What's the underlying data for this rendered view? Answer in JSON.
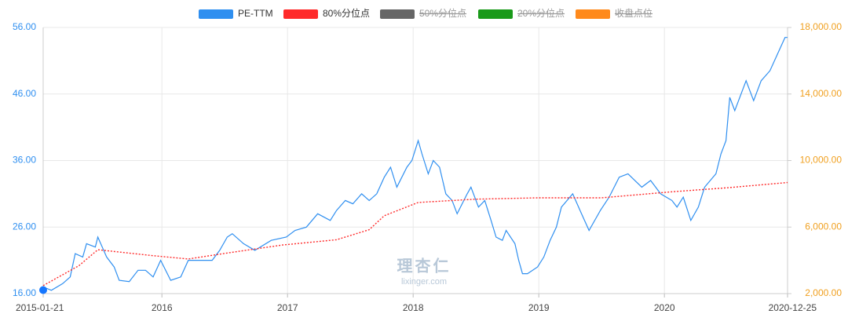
{
  "chart_data": {
    "type": "line",
    "watermark": [
      "理杏仁",
      "lixinger.com"
    ],
    "xlim": [
      2015.055,
      2020.98
    ],
    "xticks": [
      {
        "value": 2015.055,
        "label": "2015-01-21"
      },
      2016,
      2017,
      2018,
      2019,
      2020,
      {
        "value": 2020.98,
        "label": "2020-12-25"
      }
    ],
    "ylim": [
      16,
      56
    ],
    "yticks": [
      {
        "value": 16,
        "label": "16.00"
      },
      {
        "value": 26,
        "label": "26.00"
      },
      {
        "value": 36,
        "label": "36.00"
      },
      {
        "value": 46,
        "label": "46.00"
      },
      {
        "value": 56,
        "label": "56.00"
      }
    ],
    "y2lim": [
      2000,
      18000
    ],
    "y2ticks": [
      {
        "value": 2000,
        "label": "2,000.00"
      },
      {
        "value": 6000,
        "label": "6,000.00"
      },
      {
        "value": 10000,
        "label": "10,000.00"
      },
      {
        "value": 14000,
        "label": "14,000.00"
      },
      {
        "value": 18000,
        "label": "18,000.00"
      }
    ],
    "grid": true,
    "series": [
      {
        "name": "PE-TTM",
        "color": "#2f8ff0",
        "visible": true,
        "dash": false,
        "x": [
          2015.055,
          2015.12,
          2015.21,
          2015.27,
          2015.31,
          2015.37,
          2015.4,
          2015.47,
          2015.49,
          2015.56,
          2015.62,
          2015.66,
          2015.74,
          2015.81,
          2015.87,
          2015.93,
          2015.99,
          2016.07,
          2016.15,
          2016.21,
          2016.31,
          2016.4,
          2016.46,
          2016.52,
          2016.56,
          2016.65,
          2016.74,
          2016.87,
          2016.99,
          2017.06,
          2017.15,
          2017.24,
          2017.34,
          2017.39,
          2017.46,
          2017.52,
          2017.59,
          2017.65,
          2017.71,
          2017.77,
          2017.82,
          2017.87,
          2017.95,
          2017.99,
          2018.04,
          2018.07,
          2018.12,
          2018.16,
          2018.21,
          2018.26,
          2018.31,
          2018.35,
          2018.43,
          2018.46,
          2018.52,
          2018.57,
          2018.62,
          2018.66,
          2018.71,
          2018.74,
          2018.81,
          2018.84,
          2018.87,
          2018.91,
          2018.99,
          2019.04,
          2019.09,
          2019.14,
          2019.18,
          2019.27,
          2019.34,
          2019.4,
          2019.49,
          2019.56,
          2019.64,
          2019.71,
          2019.82,
          2019.89,
          2019.97,
          2020.06,
          2020.1,
          2020.15,
          2020.21,
          2020.27,
          2020.32,
          2020.41,
          2020.45,
          2020.49,
          2020.52,
          2020.56,
          2020.59,
          2020.65,
          2020.71,
          2020.77,
          2020.84,
          2020.9,
          2020.96,
          2020.98
        ],
        "values": [
          17,
          16.5,
          17.5,
          18.5,
          22,
          21.5,
          23.5,
          23,
          24.5,
          21.5,
          20,
          18,
          17.8,
          19.5,
          19.5,
          18.5,
          21,
          18,
          18.5,
          21,
          21,
          21,
          22.5,
          24.5,
          25,
          23.5,
          22.5,
          24,
          24.5,
          25.5,
          26,
          28,
          27,
          28.5,
          30,
          29.5,
          31,
          30,
          31,
          33.5,
          35,
          32,
          35,
          36,
          39,
          37,
          34,
          36,
          35,
          31,
          30,
          28,
          31,
          32,
          29,
          30,
          27,
          24.5,
          24,
          25.5,
          23.5,
          21,
          19,
          19,
          20,
          21.5,
          24,
          26,
          29,
          31,
          28,
          25.5,
          28.5,
          30.5,
          33.5,
          34,
          32,
          33,
          31,
          30,
          29,
          30.5,
          27,
          29,
          32,
          34,
          37,
          39,
          45.5,
          43.5,
          45,
          48,
          45,
          48,
          49.5,
          52,
          54.5,
          54.5
        ]
      },
      {
        "name": "80%分位点",
        "color": "#ff2a2a",
        "visible": true,
        "dash": true,
        "x": [
          2015.055,
          2015.34,
          2015.49,
          2015.93,
          2016.21,
          2016.52,
          2016.96,
          2017.39,
          2017.65,
          2017.77,
          2018.04,
          2018.5,
          2018.99,
          2019.5,
          2020.06,
          2020.5,
          2020.98
        ],
        "values": [
          17.2,
          20.2,
          22.6,
          21.7,
          21.2,
          22.1,
          23.3,
          24.1,
          25.6,
          27.7,
          29.7,
          30.2,
          30.4,
          30.4,
          31.3,
          31.9,
          32.7
        ]
      },
      {
        "name": "50%分位点",
        "color": "#666666",
        "visible": false
      },
      {
        "name": "20%分位点",
        "color": "#1a9a1a",
        "visible": false
      },
      {
        "name": "收盘点位",
        "color": "#ff8a1c",
        "visible": false
      }
    ]
  }
}
